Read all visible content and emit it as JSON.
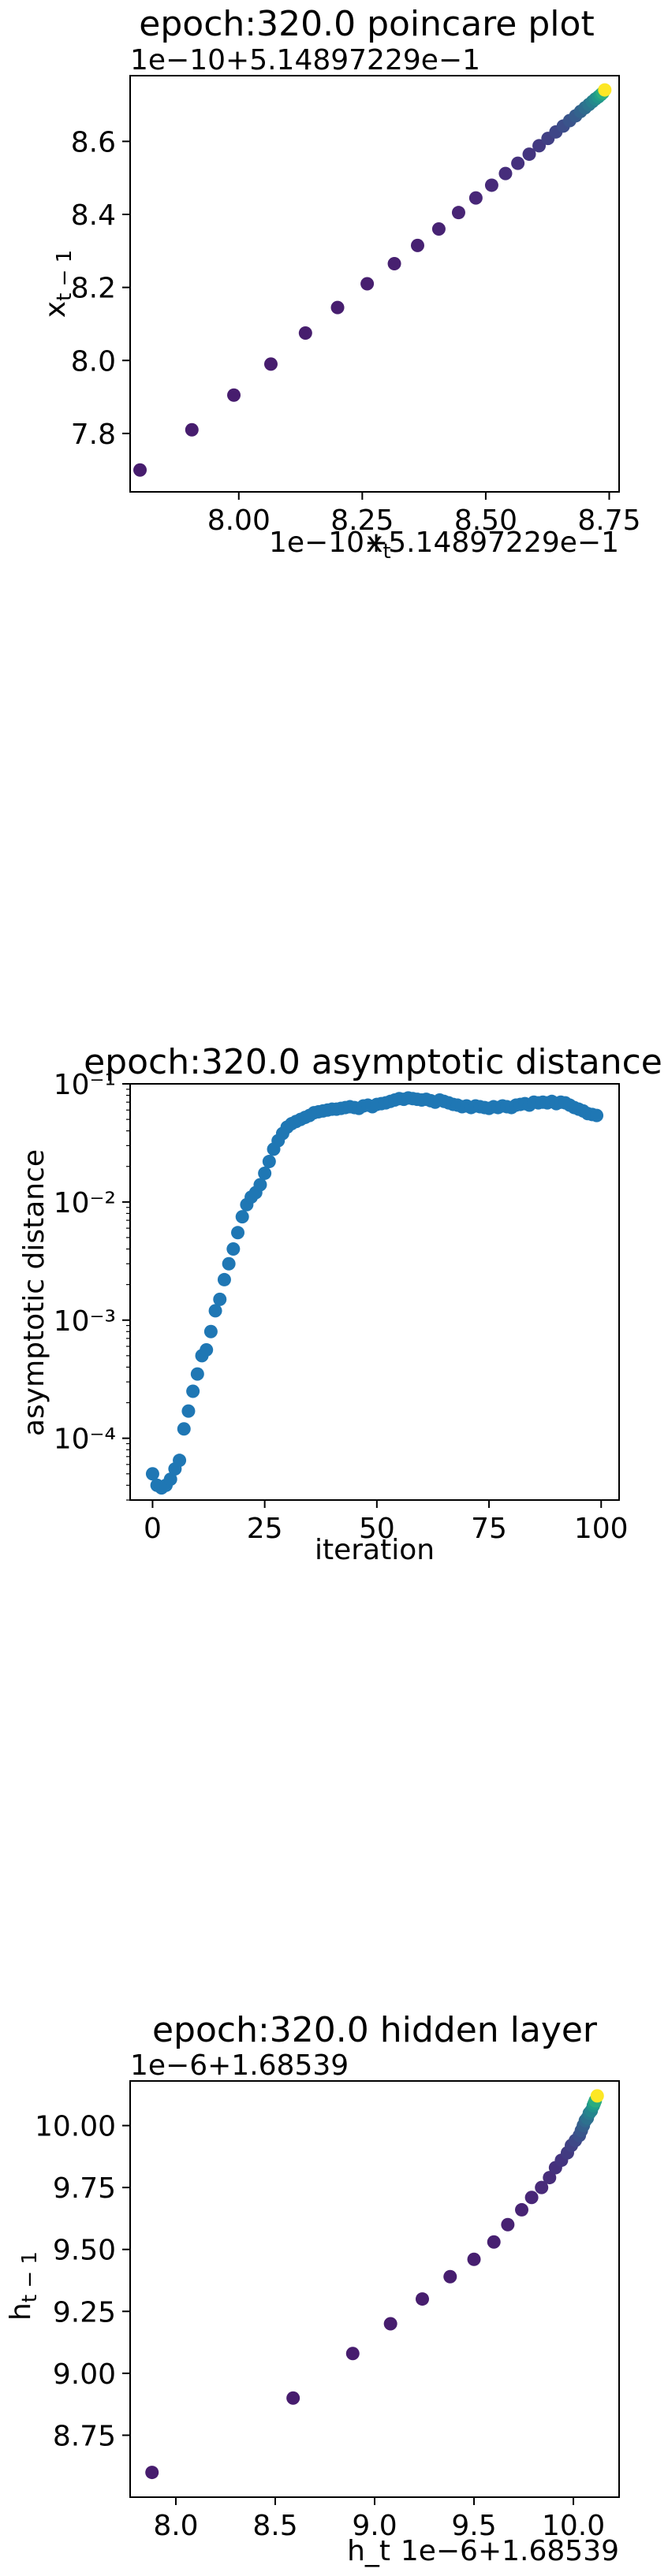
{
  "chart_data": [
    {
      "type": "scatter",
      "title": "epoch:320.0 poincare plot",
      "xlabel": "x_t",
      "ylabel": "x_{t-1}",
      "x_offset_text": "1e−10+5.14897229e−1",
      "y_offset_text": "1e−10+5.14897229e−1",
      "xlim": [
        7.78,
        8.77
      ],
      "ylim": [
        7.64,
        8.78
      ],
      "x_ticks": [
        8.0,
        8.25,
        8.5,
        8.75
      ],
      "x_tick_labels": [
        "8.00",
        "8.25",
        "8.50",
        "8.75"
      ],
      "y_ticks": [
        7.8,
        8.0,
        8.2,
        8.4,
        8.6
      ],
      "y_tick_labels": [
        "7.8",
        "8.0",
        "8.2",
        "8.4",
        "8.6"
      ],
      "colormap": "viridis",
      "x": [
        7.8,
        7.905,
        7.99,
        8.065,
        8.135,
        8.2,
        8.26,
        8.315,
        8.362,
        8.405,
        8.445,
        8.48,
        8.512,
        8.54,
        8.565,
        8.588,
        8.608,
        8.626,
        8.642,
        8.657,
        8.67,
        8.682,
        8.692,
        8.701,
        8.709,
        8.716,
        8.722,
        8.728,
        8.733,
        8.737,
        8.741
      ],
      "y": [
        7.7,
        7.81,
        7.905,
        7.99,
        8.075,
        8.145,
        8.21,
        8.265,
        8.315,
        8.36,
        8.405,
        8.445,
        8.48,
        8.512,
        8.54,
        8.565,
        8.588,
        8.608,
        8.626,
        8.642,
        8.657,
        8.67,
        8.682,
        8.692,
        8.701,
        8.709,
        8.716,
        8.722,
        8.728,
        8.733,
        8.741
      ],
      "highlight_point_color": "#fde725"
    },
    {
      "type": "scatter",
      "title": "epoch:320.0 asymptotic distance",
      "xlabel": "iteration",
      "ylabel": "asymptotic distance",
      "yscale": "log",
      "xlim": [
        -5,
        104
      ],
      "ylim": [
        3e-05,
        0.1
      ],
      "x_ticks": [
        0,
        25,
        50,
        75,
        100
      ],
      "x_tick_labels": [
        "0",
        "25",
        "50",
        "75",
        "100"
      ],
      "y_ticks": [
        0.0001,
        0.001,
        0.01,
        0.1
      ],
      "y_tick_labels": [
        "10⁻⁴",
        "10⁻³",
        "10⁻²",
        "10⁻¹"
      ],
      "point_color": "#1f77b4",
      "x": [
        0,
        1,
        2,
        3,
        4,
        5,
        6,
        7,
        8,
        9,
        10,
        11,
        12,
        13,
        14,
        15,
        16,
        17,
        18,
        19,
        20,
        21,
        22,
        23,
        24,
        25,
        26,
        27,
        28,
        29,
        30,
        31,
        32,
        33,
        34,
        35,
        36,
        37,
        38,
        39,
        40,
        41,
        42,
        43,
        44,
        45,
        46,
        47,
        48,
        49,
        50,
        51,
        52,
        53,
        54,
        55,
        56,
        57,
        58,
        59,
        60,
        61,
        62,
        63,
        64,
        65,
        66,
        67,
        68,
        69,
        70,
        71,
        72,
        73,
        74,
        75,
        76,
        77,
        78,
        79,
        80,
        81,
        82,
        83,
        84,
        85,
        86,
        87,
        88,
        89,
        90,
        91,
        92,
        93,
        94,
        95,
        96,
        97,
        98,
        99
      ],
      "y": [
        5e-05,
        4e-05,
        3.8e-05,
        4e-05,
        4.5e-05,
        5.5e-05,
        6.5e-05,
        0.00012,
        0.00017,
        0.00025,
        0.00035,
        0.0005,
        0.00056,
        0.0008,
        0.0012,
        0.0015,
        0.0022,
        0.003,
        0.004,
        0.0055,
        0.0075,
        0.0095,
        0.011,
        0.012,
        0.014,
        0.0175,
        0.022,
        0.028,
        0.033,
        0.038,
        0.043,
        0.046,
        0.048,
        0.05,
        0.052,
        0.054,
        0.057,
        0.058,
        0.059,
        0.06,
        0.061,
        0.061,
        0.062,
        0.063,
        0.064,
        0.063,
        0.062,
        0.065,
        0.066,
        0.064,
        0.067,
        0.068,
        0.069,
        0.071,
        0.073,
        0.075,
        0.074,
        0.076,
        0.075,
        0.074,
        0.073,
        0.074,
        0.072,
        0.07,
        0.073,
        0.071,
        0.069,
        0.067,
        0.066,
        0.064,
        0.065,
        0.063,
        0.065,
        0.064,
        0.063,
        0.062,
        0.064,
        0.063,
        0.065,
        0.064,
        0.063,
        0.066,
        0.067,
        0.068,
        0.066,
        0.07,
        0.069,
        0.07,
        0.069,
        0.071,
        0.068,
        0.07,
        0.069,
        0.066,
        0.063,
        0.061,
        0.059,
        0.056,
        0.055,
        0.054
      ]
    },
    {
      "type": "scatter",
      "title": "epoch:320.0 hidden layer",
      "xlabel": "h_t",
      "ylabel": "h_{t-1}",
      "x_offset_text": "1e−6+1.68539",
      "y_offset_text": "1e−6+1.68539",
      "xlim": [
        7.77,
        10.23
      ],
      "ylim": [
        8.5,
        10.18
      ],
      "x_ticks": [
        8.0,
        8.5,
        9.0,
        9.5,
        10.0
      ],
      "x_tick_labels": [
        "8.0",
        "8.5",
        "9.0",
        "9.5",
        "10.0"
      ],
      "y_ticks": [
        8.75,
        9.0,
        9.25,
        9.5,
        9.75,
        10.0
      ],
      "y_tick_labels": [
        "8.75",
        "9.00",
        "9.25",
        "9.50",
        "9.75",
        "10.00"
      ],
      "colormap": "viridis",
      "x": [
        7.88,
        8.59,
        8.89,
        9.08,
        9.24,
        9.38,
        9.5,
        9.6,
        9.67,
        9.74,
        9.79,
        9.84,
        9.88,
        9.91,
        9.94,
        9.97,
        9.99,
        10.01,
        10.03,
        10.04,
        10.05,
        10.06,
        10.07,
        10.08,
        10.09,
        10.1,
        10.105,
        10.11,
        10.12
      ],
      "y": [
        8.6,
        8.9,
        9.08,
        9.2,
        9.3,
        9.39,
        9.46,
        9.53,
        9.6,
        9.66,
        9.71,
        9.75,
        9.79,
        9.83,
        9.86,
        9.89,
        9.92,
        9.94,
        9.96,
        9.98,
        10.0,
        10.02,
        10.03,
        10.05,
        10.06,
        10.08,
        10.09,
        10.1,
        10.12
      ],
      "highlight_point_color": "#fde725"
    }
  ]
}
